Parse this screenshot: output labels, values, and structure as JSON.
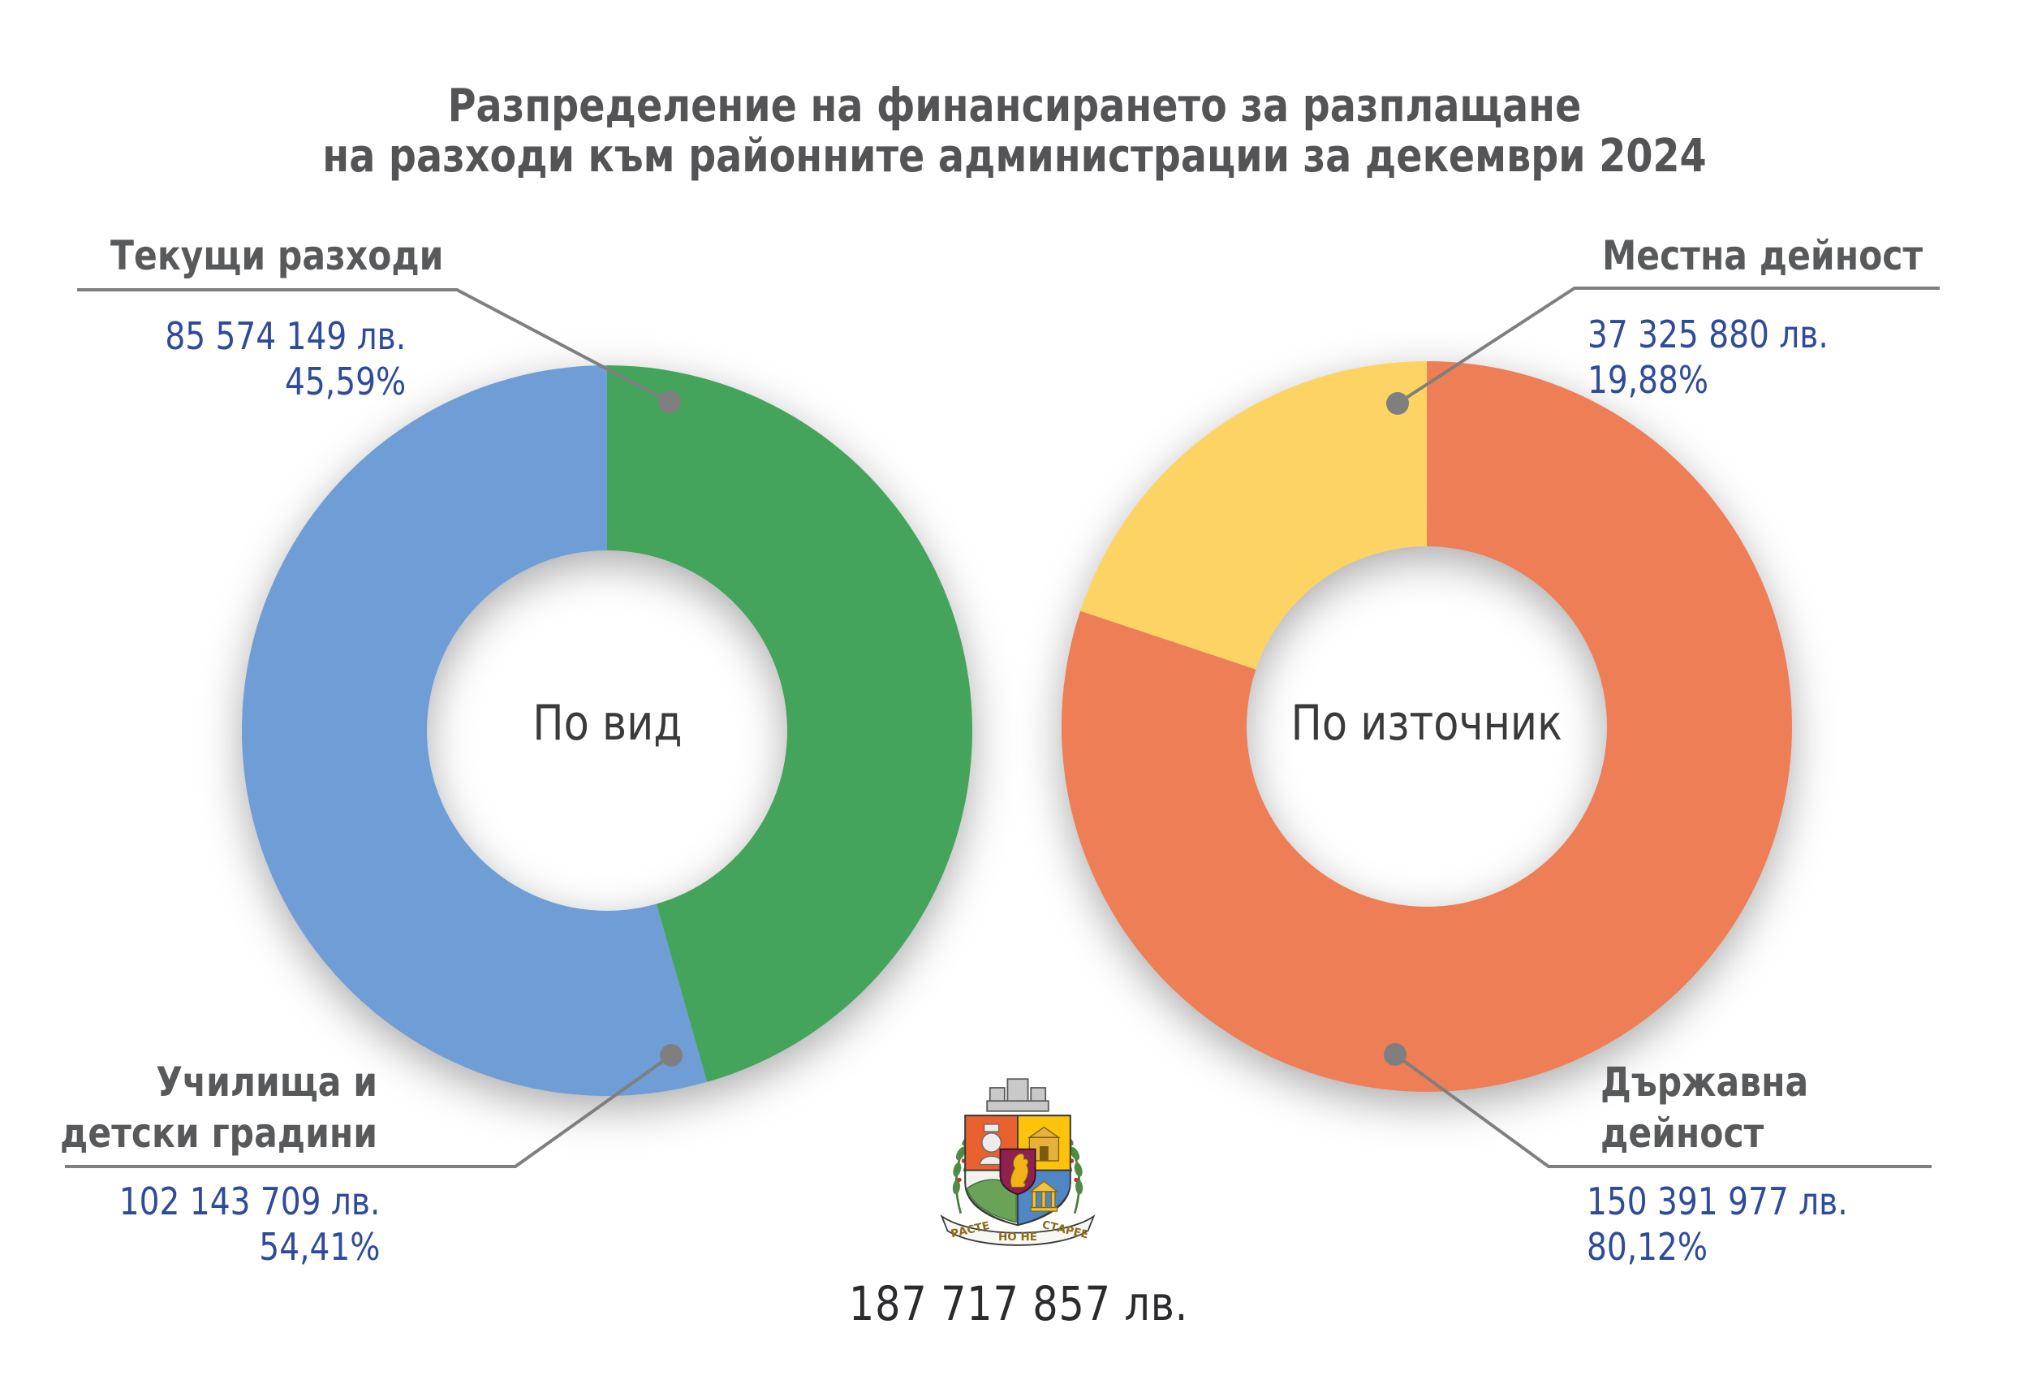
{
  "title": {
    "line1": "Разпределение на финансирането за разплащане",
    "line2": "на разходи към районните администрации за декември 2024"
  },
  "total": {
    "label": "187 717 857 лв."
  },
  "chart_data": [
    {
      "type": "pie",
      "donut": true,
      "title": "По вид",
      "labels": [
        "Текущи разходи",
        "Училища и детски градини"
      ],
      "values": [
        85574149,
        102143709
      ],
      "value_labels": [
        "85 574 149 лв.",
        "102 143 709 лв."
      ],
      "percent_labels": [
        "45,59%",
        "54,41%"
      ],
      "colors": [
        "#44a45c",
        "#6f9ed6"
      ],
      "start_angle": 0,
      "legend_position": "callouts"
    },
    {
      "type": "pie",
      "donut": true,
      "title": "По източник",
      "labels": [
        "Местна дейност",
        "Държавна дейност"
      ],
      "values": [
        37325880,
        150391977
      ],
      "value_labels": [
        "37 325 880 лв.",
        "150 391 977 лв."
      ],
      "percent_labels": [
        "19,88%",
        "80,12%"
      ],
      "colors": [
        "#fdd464",
        "#ee7e55"
      ],
      "start_angle": -71.568,
      "legend_position": "callouts"
    }
  ],
  "coat_of_arms": {
    "motto": [
      "РАСТЕ",
      "НО НЕ",
      "СТАРЕЕ"
    ]
  },
  "style_colors": {
    "label_gray": "#58595b",
    "value_blue": "#2e4b9b",
    "callout_gray": "#7f7f7f",
    "title_gray": "#545456"
  }
}
